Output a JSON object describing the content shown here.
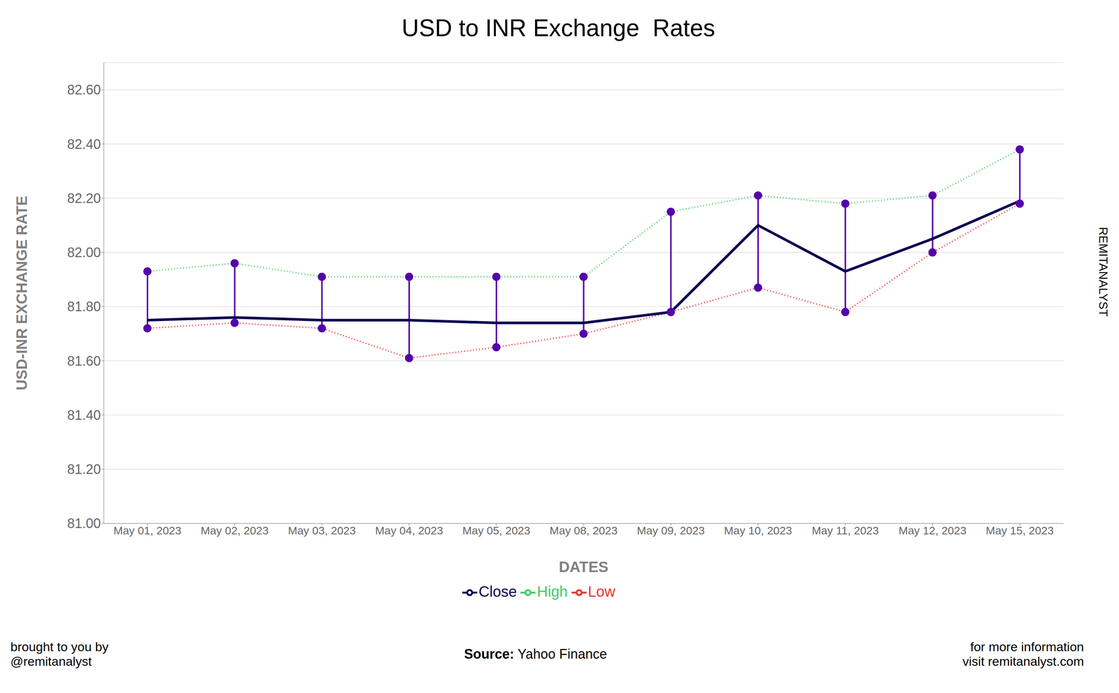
{
  "chart_data": {
    "type": "line",
    "title": "USD to INR Exchange  Rates",
    "xlabel": "DATES",
    "ylabel": "USD-INR EXCHANGE RATE",
    "categories": [
      "May 01, 2023",
      "May 02, 2023",
      "May 03, 2023",
      "May 04, 2023",
      "May 05, 2023",
      "May 08, 2023",
      "May 09, 2023",
      "May 10, 2023",
      "May 11, 2023",
      "May 12, 2023",
      "May 15, 2023"
    ],
    "series": [
      {
        "name": "High",
        "color": "#44cc66",
        "line_style": "dotted",
        "marker": "circle",
        "values": [
          81.93,
          81.96,
          81.91,
          81.91,
          81.91,
          81.91,
          82.15,
          82.21,
          82.18,
          82.21,
          82.38
        ]
      },
      {
        "name": "Low",
        "color": "#ee3333",
        "line_style": "dotted",
        "marker": "circle",
        "values": [
          81.72,
          81.74,
          81.72,
          81.61,
          81.65,
          81.7,
          81.78,
          81.87,
          81.78,
          82.0,
          82.18
        ]
      },
      {
        "name": "Close",
        "color": "#0a0050",
        "line_style": "solid",
        "values": [
          81.75,
          81.76,
          81.75,
          81.75,
          81.74,
          81.74,
          81.78,
          82.1,
          81.93,
          82.05,
          82.19
        ]
      }
    ],
    "color": "#5500aa",
    "ylim": [
      81.0,
      82.7
    ],
    "yticks": [
      {
        "value": 81.0,
        "label": "81.00"
      },
      {
        "value": 81.2,
        "label": "81.20"
      },
      {
        "value": 81.4,
        "label": "81.40"
      },
      {
        "value": 81.6,
        "label": "81.60"
      },
      {
        "value": 81.8,
        "label": "81.80"
      },
      {
        "value": 82.0,
        "label": "82.00"
      },
      {
        "value": 82.2,
        "label": "82.20"
      },
      {
        "value": 82.4,
        "label": "82.40"
      },
      {
        "value": 82.6,
        "label": "82.60"
      }
    ],
    "grid": true,
    "legend": "bottom",
    "annotations": [
      "brought to you by\n@remitanalyst",
      "Source: Yahoo Finance",
      "for more information\nvisit remitanalyst.com",
      "REMITANALYST"
    ]
  }
}
